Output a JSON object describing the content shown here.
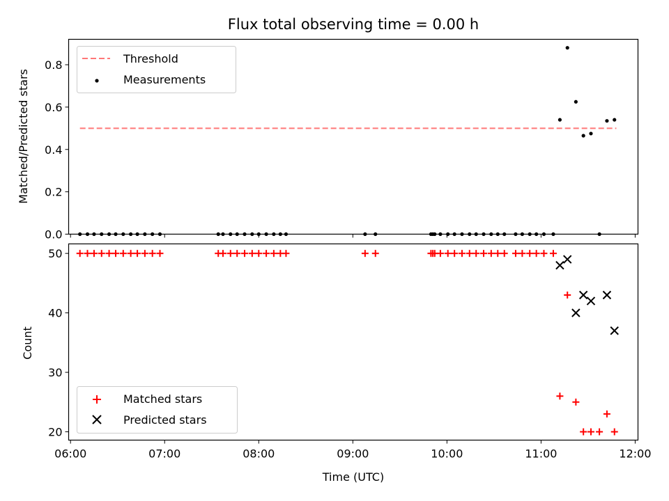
{
  "colors": {
    "threshold": "#ff7777",
    "measurement": "#000000",
    "matched": "#ff0000",
    "predicted": "#000000"
  },
  "chart_data": [
    {
      "type": "scatter",
      "title": "Flux total observing time = 0.00 h",
      "xlabel": "",
      "ylabel": "Matched/Predicted stars",
      "xlim": [
        5.98,
        12.03
      ],
      "ylim": [
        0,
        0.92
      ],
      "xticks": [
        6,
        7,
        8,
        9,
        10,
        11,
        12
      ],
      "xticklabels": [],
      "yticks": [
        0,
        0.2,
        0.4,
        0.6,
        0.8
      ],
      "yticklabels": [
        "0.0",
        "0.2",
        "0.4",
        "0.6",
        "0.8"
      ],
      "legend": {
        "placement": "top-left",
        "entries": [
          "Threshold",
          "Measurements"
        ]
      },
      "series": [
        {
          "name": "Threshold",
          "kind": "dashed-line",
          "x": [
            6.1,
            11.8
          ],
          "y": [
            0.5,
            0.5
          ]
        },
        {
          "name": "Measurements",
          "kind": "dots",
          "x": [
            6.1,
            6.18,
            6.25,
            6.33,
            6.41,
            6.48,
            6.56,
            6.64,
            6.71,
            6.79,
            6.87,
            6.95,
            7.57,
            7.62,
            7.7,
            7.77,
            7.85,
            7.93,
            8.0,
            8.08,
            8.16,
            8.23,
            8.29,
            9.13,
            9.24,
            9.83,
            9.85,
            9.87,
            9.93,
            10.01,
            10.08,
            10.16,
            10.24,
            10.31,
            10.39,
            10.47,
            10.54,
            10.61,
            10.73,
            10.8,
            10.88,
            10.95,
            11.03,
            11.13,
            11.2,
            11.28,
            11.37,
            11.45,
            11.53,
            11.62,
            11.7,
            11.78
          ],
          "y": [
            0,
            0,
            0,
            0,
            0,
            0,
            0,
            0,
            0,
            0,
            0,
            0,
            0,
            0,
            0,
            0,
            0,
            0,
            0,
            0,
            0,
            0,
            0,
            0,
            0,
            0,
            0,
            0,
            0,
            0,
            0,
            0,
            0,
            0,
            0,
            0,
            0,
            0,
            0,
            0,
            0,
            0,
            0,
            0,
            0.54,
            0.88,
            0.625,
            0.465,
            0.475,
            0.0,
            0.535,
            0.54
          ]
        }
      ]
    },
    {
      "type": "scatter",
      "title": "",
      "xlabel": "Time (UTC)",
      "ylabel": "Count",
      "xlim": [
        5.98,
        12.03
      ],
      "ylim": [
        18.6,
        51.6
      ],
      "xticks": [
        6,
        7,
        8,
        9,
        10,
        11,
        12
      ],
      "xticklabels": [
        "06:00",
        "07:00",
        "08:00",
        "09:00",
        "10:00",
        "11:00",
        "12:00"
      ],
      "yticks": [
        20,
        30,
        40,
        50
      ],
      "yticklabels": [
        "20",
        "30",
        "40",
        "50"
      ],
      "legend": {
        "placement": "bottom-left",
        "entries": [
          "Matched stars",
          "Predicted stars"
        ]
      },
      "series": [
        {
          "name": "Matched stars",
          "kind": "plus",
          "x": [
            6.1,
            6.18,
            6.25,
            6.33,
            6.41,
            6.48,
            6.56,
            6.64,
            6.71,
            6.79,
            6.87,
            6.95,
            7.57,
            7.62,
            7.7,
            7.77,
            7.85,
            7.93,
            8.0,
            8.08,
            8.16,
            8.23,
            8.29,
            9.13,
            9.24,
            9.83,
            9.85,
            9.87,
            9.93,
            10.01,
            10.08,
            10.16,
            10.24,
            10.31,
            10.39,
            10.47,
            10.54,
            10.61,
            10.73,
            10.8,
            10.88,
            10.95,
            11.03,
            11.13,
            11.2,
            11.28,
            11.37,
            11.45,
            11.53,
            11.62,
            11.7,
            11.78
          ],
          "y": [
            50,
            50,
            50,
            50,
            50,
            50,
            50,
            50,
            50,
            50,
            50,
            50,
            50,
            50,
            50,
            50,
            50,
            50,
            50,
            50,
            50,
            50,
            50,
            50,
            50,
            50,
            50,
            50,
            50,
            50,
            50,
            50,
            50,
            50,
            50,
            50,
            50,
            50,
            50,
            50,
            50,
            50,
            50,
            50,
            26,
            43,
            25,
            20,
            20,
            20,
            23,
            20
          ]
        },
        {
          "name": "Predicted stars",
          "kind": "cross",
          "x": [
            11.2,
            11.28,
            11.37,
            11.45,
            11.53,
            11.7,
            11.78
          ],
          "y": [
            48,
            49,
            40,
            43,
            42,
            43,
            37
          ]
        }
      ]
    }
  ]
}
